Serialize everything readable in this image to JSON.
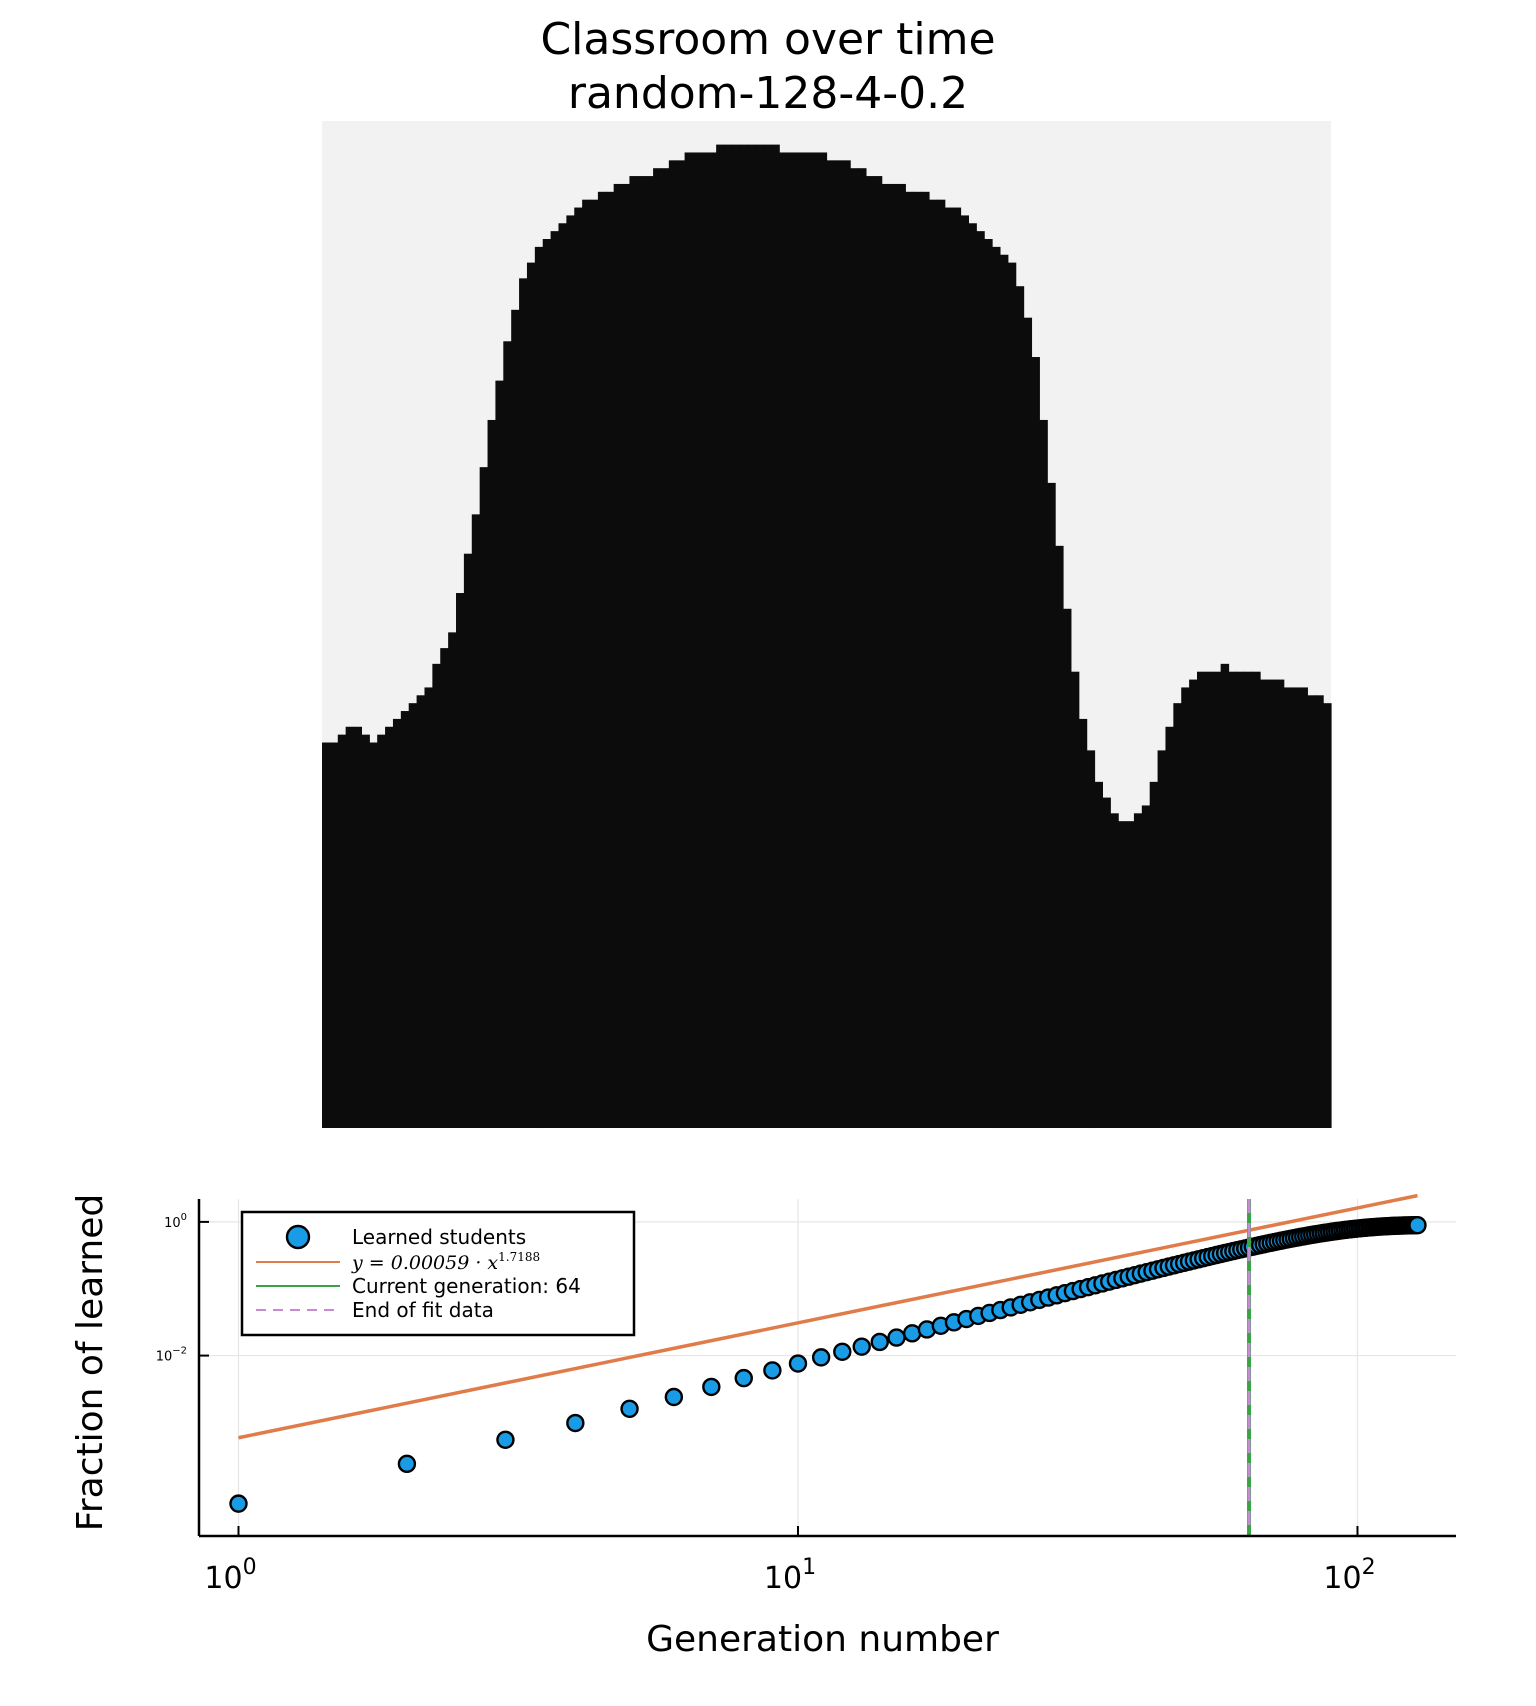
{
  "figure": {
    "title": "Classroom over time",
    "subtitle": "random-128-4-0.2"
  },
  "colors": {
    "learned": "#0c0c0c",
    "unlearned": "#f2f2f2",
    "scatter_fill": "#1a9be6",
    "fit_line": "#e07b4a",
    "current_generation": "#3aa346",
    "end_of_fit": "#c78bd6",
    "grid": "#e6e6e6"
  },
  "chart_data": [
    {
      "type": "heatmap",
      "description_grid": "128x128 classroom state, learned = black",
      "grid_size": [
        128,
        128
      ],
      "values": [
        "unlearned",
        "learned"
      ],
      "boundary_profile": {
        "note": "per column (0-127, left to right): top row index of learned region; columns with two masses approximated as a single envelope",
        "columns": [
          79,
          79,
          78,
          77,
          77,
          78,
          79,
          78,
          77,
          76,
          75,
          74,
          73,
          72,
          69,
          67,
          65,
          60,
          55,
          50,
          44,
          38,
          33,
          28,
          24,
          20,
          18,
          16,
          15,
          14,
          13,
          12,
          11,
          10,
          10,
          9,
          9,
          8,
          8,
          7,
          7,
          7,
          6,
          6,
          5,
          5,
          4,
          4,
          4,
          4,
          3,
          3,
          3,
          3,
          3,
          3,
          3,
          3,
          4,
          4,
          4,
          4,
          4,
          4,
          5,
          5,
          5,
          6,
          6,
          7,
          7,
          8,
          8,
          8,
          9,
          9,
          9,
          10,
          10,
          11,
          11,
          12,
          13,
          14,
          15,
          16,
          17,
          18,
          21,
          25,
          30,
          38,
          46,
          54,
          62,
          70,
          76,
          80,
          84,
          86,
          88,
          89,
          89,
          88,
          87,
          84,
          80,
          77,
          74,
          72,
          71,
          70,
          70,
          70,
          69,
          70,
          70,
          70,
          70,
          71,
          71,
          71,
          72,
          72,
          72,
          73,
          73,
          74
        ]
      },
      "interior_holes_note": "bottom-right of the boundary stays unlearned where profile rows exceed 85"
    },
    {
      "type": "scatter",
      "xlabel": "Generation number",
      "ylabel": "Fraction of learned",
      "xscale": "log",
      "yscale": "log",
      "xlim": [
        0.85,
        150
      ],
      "ylim": [
        2e-05,
        2.2
      ],
      "xticks": [
        {
          "value": 1,
          "base": "10",
          "exp": "0"
        },
        {
          "value": 10,
          "base": "10",
          "exp": "1"
        },
        {
          "value": 100,
          "base": "10",
          "exp": "2"
        }
      ],
      "yticks": [
        {
          "value": 0.01,
          "base": "10",
          "exp": "−2"
        },
        {
          "value": 1,
          "base": "10",
          "exp": "0"
        }
      ],
      "grid": true,
      "legend_position": "top-left",
      "legend": [
        {
          "label": "Learned students",
          "kind": "marker"
        },
        {
          "label": "y = 0.00059 · x",
          "exp": "1.7188",
          "kind": "line"
        },
        {
          "label": "Current generation: 64",
          "kind": "line"
        },
        {
          "label": "End of fit data",
          "kind": "dashed"
        }
      ],
      "fit": {
        "coefficient": 0.00059,
        "exponent": 1.7188,
        "x_range": [
          1,
          128
        ]
      },
      "current_generation": 64,
      "end_of_fit": 64,
      "series": [
        {
          "name": "Learned students",
          "x": [
            1,
            2,
            3,
            4,
            5,
            6,
            7,
            8,
            9,
            10,
            11,
            12,
            13,
            14,
            15,
            16,
            17,
            18,
            19,
            20,
            21,
            22,
            23,
            24,
            25,
            26,
            27,
            28,
            29,
            30,
            31,
            32,
            33,
            34,
            35,
            36,
            37,
            38,
            39,
            40,
            41,
            42,
            43,
            44,
            45,
            46,
            47,
            48,
            49,
            50,
            51,
            52,
            53,
            54,
            55,
            56,
            57,
            58,
            59,
            60,
            61,
            62,
            63,
            64,
            65,
            66,
            67,
            68,
            69,
            70,
            71,
            72,
            73,
            74,
            75,
            76,
            77,
            78,
            79,
            80,
            81,
            82,
            83,
            84,
            85,
            86,
            87,
            88,
            89,
            90,
            91,
            92,
            93,
            94,
            95,
            96,
            97,
            98,
            99,
            100,
            101,
            102,
            103,
            104,
            105,
            106,
            107,
            108,
            109,
            110,
            111,
            112,
            113,
            114,
            115,
            116,
            117,
            118,
            119,
            120,
            121,
            122,
            123,
            124,
            125,
            126,
            127,
            128
          ],
          "y": [
            6.1e-05,
            0.00024,
            0.00055,
            0.00098,
            0.0016,
            0.0024,
            0.0034,
            0.0046,
            0.006,
            0.0076,
            0.0094,
            0.0114,
            0.0136,
            0.016,
            0.0186,
            0.0215,
            0.0246,
            0.0279,
            0.0314,
            0.0352,
            0.0392,
            0.0434,
            0.0479,
            0.0526,
            0.0575,
            0.0627,
            0.0681,
            0.0738,
            0.0797,
            0.0858,
            0.0922,
            0.0988,
            0.1056,
            0.1127,
            0.12,
            0.1275,
            0.1352,
            0.1432,
            0.1513,
            0.1597,
            0.1683,
            0.1771,
            0.1861,
            0.1953,
            0.2047,
            0.2143,
            0.2241,
            0.2341,
            0.2442,
            0.2545,
            0.265,
            0.2756,
            0.2864,
            0.2973,
            0.3084,
            0.3196,
            0.3309,
            0.3424,
            0.354,
            0.3657,
            0.3775,
            0.3893,
            0.4013,
            0.4133,
            0.4254,
            0.4375,
            0.4497,
            0.4619,
            0.4741,
            0.4863,
            0.4985,
            0.5107,
            0.5228,
            0.5349,
            0.5469,
            0.5589,
            0.5708,
            0.5826,
            0.5943,
            0.6058,
            0.6172,
            0.6285,
            0.6396,
            0.6505,
            0.6613,
            0.6719,
            0.6822,
            0.6924,
            0.7023,
            0.712,
            0.7215,
            0.7307,
            0.7397,
            0.7484,
            0.7569,
            0.7651,
            0.773,
            0.7806,
            0.788,
            0.7951,
            0.8019,
            0.8084,
            0.8147,
            0.8206,
            0.8263,
            0.8317,
            0.8368,
            0.8417,
            0.8463,
            0.8506,
            0.8547,
            0.8585,
            0.8621,
            0.8655,
            0.8686,
            0.8715,
            0.8742,
            0.8767,
            0.879,
            0.8811,
            0.883,
            0.8848,
            0.8864,
            0.8879,
            0.8892,
            0.8904,
            0.8915,
            0.8925
          ]
        }
      ]
    }
  ]
}
